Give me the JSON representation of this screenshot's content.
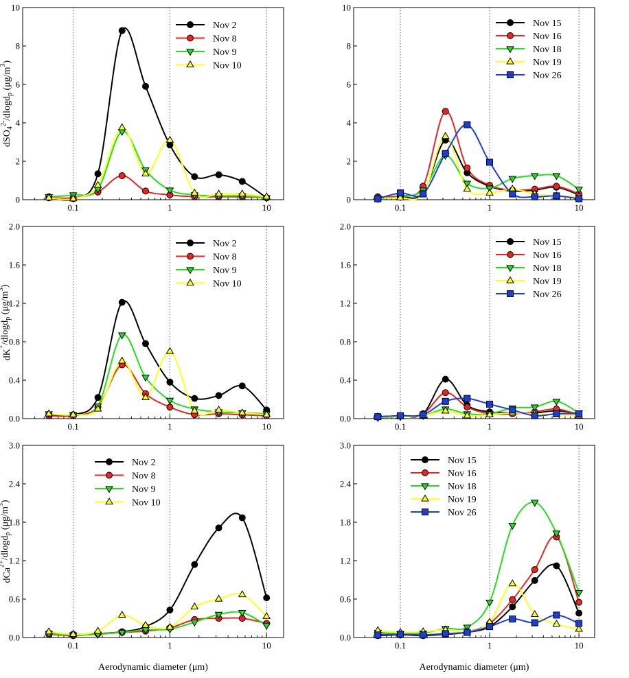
{
  "figure": {
    "xlabel": "Aerodynamic diameter (μm)",
    "x_tick_labels": [
      "0.1",
      "1",
      "10"
    ],
    "markers": {
      "Nov 2": "circle",
      "Nov 8": "circle",
      "Nov 9": "triangle-down",
      "Nov 10": "triangle-up",
      "Nov 15": "circle",
      "Nov 16": "circle",
      "Nov 18": "triangle-down",
      "Nov 19": "triangle-up",
      "Nov 26": "square"
    },
    "colors": {
      "Nov 2": "#000000",
      "Nov 8": "#e8251e",
      "Nov 9": "#22e01e",
      "Nov 10": "#ffff1e",
      "Nov 15": "#000000",
      "Nov 16": "#e8251e",
      "Nov 18": "#22e01e",
      "Nov 19": "#ffff1e",
      "Nov 26": "#1a3fd6"
    }
  },
  "chart_data": [
    {
      "type": "line",
      "panel": "sulfate-left",
      "ylabel": "dSO42-/dlogdp (μg/m3)",
      "ylabel_parts": {
        "base": "dSO",
        "sub1": "4",
        "sup": "2-",
        "mid": "/dlogd",
        "sub2": "p",
        "unit": " (μg/m",
        "unit_sup": "3",
        "end": ")"
      },
      "ylim": [
        0,
        10
      ],
      "yticks": [
        0,
        2,
        4,
        6,
        8,
        10
      ],
      "ytick_labels": [
        "0",
        "2",
        "4",
        "6",
        "8",
        "10"
      ],
      "xlim": [
        0.03,
        15
      ],
      "x_scale": "log",
      "x": [
        0.056,
        0.1,
        0.18,
        0.32,
        0.56,
        1.0,
        1.8,
        3.2,
        5.6,
        10
      ],
      "series": [
        {
          "name": "Nov 2",
          "values": [
            0.15,
            0.05,
            1.35,
            8.8,
            5.9,
            2.85,
            1.2,
            1.3,
            0.95,
            0.1
          ]
        },
        {
          "name": "Nov 8",
          "values": [
            0.1,
            0.1,
            0.4,
            1.25,
            0.45,
            0.25,
            0.15,
            0.15,
            0.15,
            0.1
          ]
        },
        {
          "name": "Nov 9",
          "values": [
            0.15,
            0.25,
            0.55,
            3.55,
            1.55,
            0.5,
            0.25,
            0.2,
            0.2,
            0.1
          ]
        },
        {
          "name": "Nov 10",
          "values": [
            0.1,
            0.05,
            0.75,
            3.75,
            1.35,
            3.1,
            0.35,
            0.3,
            0.3,
            0.15
          ]
        }
      ]
    },
    {
      "type": "line",
      "panel": "sulfate-right",
      "ylabel": "",
      "ylim": [
        0,
        10
      ],
      "yticks": [
        0,
        2,
        4,
        6,
        8,
        10
      ],
      "ytick_labels": [
        "0",
        "2",
        "4",
        "6",
        "8",
        "10"
      ],
      "xlim": [
        0.03,
        15
      ],
      "x_scale": "log",
      "x": [
        0.056,
        0.1,
        0.18,
        0.32,
        0.56,
        1.0,
        1.8,
        3.2,
        5.6,
        10
      ],
      "series": [
        {
          "name": "Nov 15",
          "values": [
            0.1,
            0.15,
            0.35,
            3.1,
            1.4,
            0.7,
            0.45,
            0.5,
            0.65,
            0.25
          ]
        },
        {
          "name": "Nov 16",
          "values": [
            0.15,
            0.2,
            0.7,
            4.6,
            1.65,
            0.75,
            0.5,
            0.55,
            0.7,
            0.3
          ]
        },
        {
          "name": "Nov 18",
          "values": [
            0.05,
            0.15,
            0.5,
            2.3,
            0.85,
            0.6,
            1.1,
            1.25,
            1.25,
            0.55
          ]
        },
        {
          "name": "Nov 19",
          "values": [
            0.1,
            0.1,
            0.3,
            3.3,
            0.55,
            0.35,
            0.55,
            0.3,
            0.2,
            0.15
          ]
        },
        {
          "name": "Nov 26",
          "values": [
            0.05,
            0.35,
            0.3,
            2.4,
            3.9,
            1.95,
            0.3,
            0.15,
            0.2,
            0.05
          ]
        }
      ]
    },
    {
      "type": "line",
      "panel": "potassium-left",
      "ylabel": "dK+/dlogdp (μg/m3)",
      "ylabel_parts": {
        "base": "dK",
        "sub1": "",
        "sup": "+",
        "mid": "/dlogd",
        "sub2": "p",
        "unit": " (μg/m",
        "unit_sup": "3",
        "end": ")"
      },
      "ylim": [
        0,
        2.0
      ],
      "yticks": [
        0,
        0.4,
        0.8,
        1.2,
        1.6,
        2.0
      ],
      "ytick_labels": [
        "0.0",
        "0.4",
        "0.8",
        "1.2",
        "1.6",
        "2.0"
      ],
      "xlim": [
        0.03,
        15
      ],
      "x_scale": "log",
      "x": [
        0.056,
        0.1,
        0.18,
        0.32,
        0.56,
        1.0,
        1.8,
        3.2,
        5.6,
        10
      ],
      "series": [
        {
          "name": "Nov 2",
          "values": [
            0.04,
            0.04,
            0.22,
            1.21,
            0.78,
            0.38,
            0.21,
            0.24,
            0.34,
            0.09
          ]
        },
        {
          "name": "Nov 8",
          "values": [
            0.03,
            0.03,
            0.12,
            0.56,
            0.26,
            0.12,
            0.04,
            0.05,
            0.04,
            0.03
          ]
        },
        {
          "name": "Nov 9",
          "values": [
            0.05,
            0.04,
            0.13,
            0.87,
            0.43,
            0.19,
            0.1,
            0.07,
            0.06,
            0.05
          ]
        },
        {
          "name": "Nov 10",
          "values": [
            0.05,
            0.04,
            0.1,
            0.6,
            0.22,
            0.7,
            0.08,
            0.09,
            0.06,
            0.04
          ]
        }
      ]
    },
    {
      "type": "line",
      "panel": "potassium-right",
      "ylabel": "",
      "ylim": [
        0,
        2.0
      ],
      "yticks": [
        0,
        0.4,
        0.8,
        1.2,
        1.6,
        2.0
      ],
      "ytick_labels": [
        "0.0",
        "0.4",
        "0.8",
        "1.2",
        "1.6",
        "2.0"
      ],
      "xlim": [
        0.03,
        15
      ],
      "x_scale": "log",
      "x": [
        0.056,
        0.1,
        0.18,
        0.32,
        0.56,
        1.0,
        1.8,
        3.2,
        5.6,
        10
      ],
      "series": [
        {
          "name": "Nov 15",
          "values": [
            0.02,
            0.03,
            0.05,
            0.41,
            0.14,
            0.07,
            0.06,
            0.06,
            0.08,
            0.05
          ]
        },
        {
          "name": "Nov 16",
          "values": [
            0.02,
            0.03,
            0.05,
            0.27,
            0.12,
            0.05,
            0.05,
            0.07,
            0.1,
            0.04
          ]
        },
        {
          "name": "Nov 18",
          "values": [
            0.01,
            0.02,
            0.03,
            0.1,
            0.05,
            0.05,
            0.11,
            0.12,
            0.18,
            0.06
          ]
        },
        {
          "name": "Nov 19",
          "values": [
            0.02,
            0.02,
            0.03,
            0.08,
            0.03,
            0.04,
            0.06,
            0.05,
            0.04,
            0.03
          ]
        },
        {
          "name": "Nov 26",
          "values": [
            0.02,
            0.03,
            0.04,
            0.18,
            0.21,
            0.15,
            0.09,
            0.03,
            0.05,
            0.05
          ]
        }
      ]
    },
    {
      "type": "line",
      "panel": "calcium-left",
      "ylabel": "dCa2+/dlogdp (μg/m3)",
      "ylabel_parts": {
        "base": "dCa",
        "sub1": "",
        "sup": "2+",
        "mid": "/dlogd",
        "sub2": "p",
        "unit": " (μg/m",
        "unit_sup": "3",
        "end": ")"
      },
      "ylim": [
        0,
        3.0
      ],
      "yticks": [
        0,
        0.6,
        1.2,
        1.8,
        2.4,
        3.0
      ],
      "ytick_labels": [
        "0.0",
        "0.6",
        "1.2",
        "1.8",
        "2.4",
        "3.0"
      ],
      "xlim": [
        0.03,
        15
      ],
      "x_scale": "log",
      "x": [
        0.056,
        0.1,
        0.18,
        0.32,
        0.56,
        1.0,
        1.8,
        3.2,
        5.6,
        10
      ],
      "series": [
        {
          "name": "Nov 2",
          "values": [
            0.07,
            0.05,
            0.06,
            0.09,
            0.17,
            0.43,
            1.14,
            1.71,
            1.87,
            0.62
          ]
        },
        {
          "name": "Nov 8",
          "values": [
            0.05,
            0.03,
            0.06,
            0.08,
            0.1,
            0.15,
            0.28,
            0.3,
            0.3,
            0.22
          ]
        },
        {
          "name": "Nov 9",
          "values": [
            0.06,
            0.04,
            0.05,
            0.08,
            0.12,
            0.13,
            0.24,
            0.36,
            0.39,
            0.19
          ]
        },
        {
          "name": "Nov 10",
          "values": [
            0.09,
            0.05,
            0.1,
            0.35,
            0.19,
            0.16,
            0.48,
            0.6,
            0.67,
            0.33
          ]
        }
      ]
    },
    {
      "type": "line",
      "panel": "calcium-right",
      "ylabel": "",
      "ylim": [
        0,
        3.0
      ],
      "yticks": [
        0,
        0.6,
        1.2,
        1.8,
        2.4,
        3.0
      ],
      "ytick_labels": [
        "0.0",
        "0.6",
        "1.2",
        "1.8",
        "2.4",
        "3.0"
      ],
      "xlim": [
        0.03,
        15
      ],
      "x_scale": "log",
      "x": [
        0.056,
        0.1,
        0.18,
        0.32,
        0.56,
        1.0,
        1.8,
        3.2,
        5.6,
        10
      ],
      "series": [
        {
          "name": "Nov 15",
          "values": [
            0.03,
            0.04,
            0.03,
            0.05,
            0.08,
            0.17,
            0.48,
            0.89,
            1.12,
            0.38
          ]
        },
        {
          "name": "Nov 16",
          "values": [
            0.05,
            0.04,
            0.04,
            0.06,
            0.09,
            0.22,
            0.59,
            1.06,
            1.57,
            0.55
          ]
        },
        {
          "name": "Nov 18",
          "values": [
            0.08,
            0.06,
            0.07,
            0.14,
            0.16,
            0.55,
            1.75,
            2.11,
            1.63,
            0.7
          ]
        },
        {
          "name": "Nov 19",
          "values": [
            0.11,
            0.08,
            0.09,
            0.12,
            0.09,
            0.24,
            0.84,
            0.36,
            0.21,
            0.13
          ]
        },
        {
          "name": "Nov 26",
          "values": [
            0.04,
            0.05,
            0.04,
            0.06,
            0.08,
            0.17,
            0.29,
            0.23,
            0.35,
            0.22
          ]
        }
      ]
    }
  ]
}
